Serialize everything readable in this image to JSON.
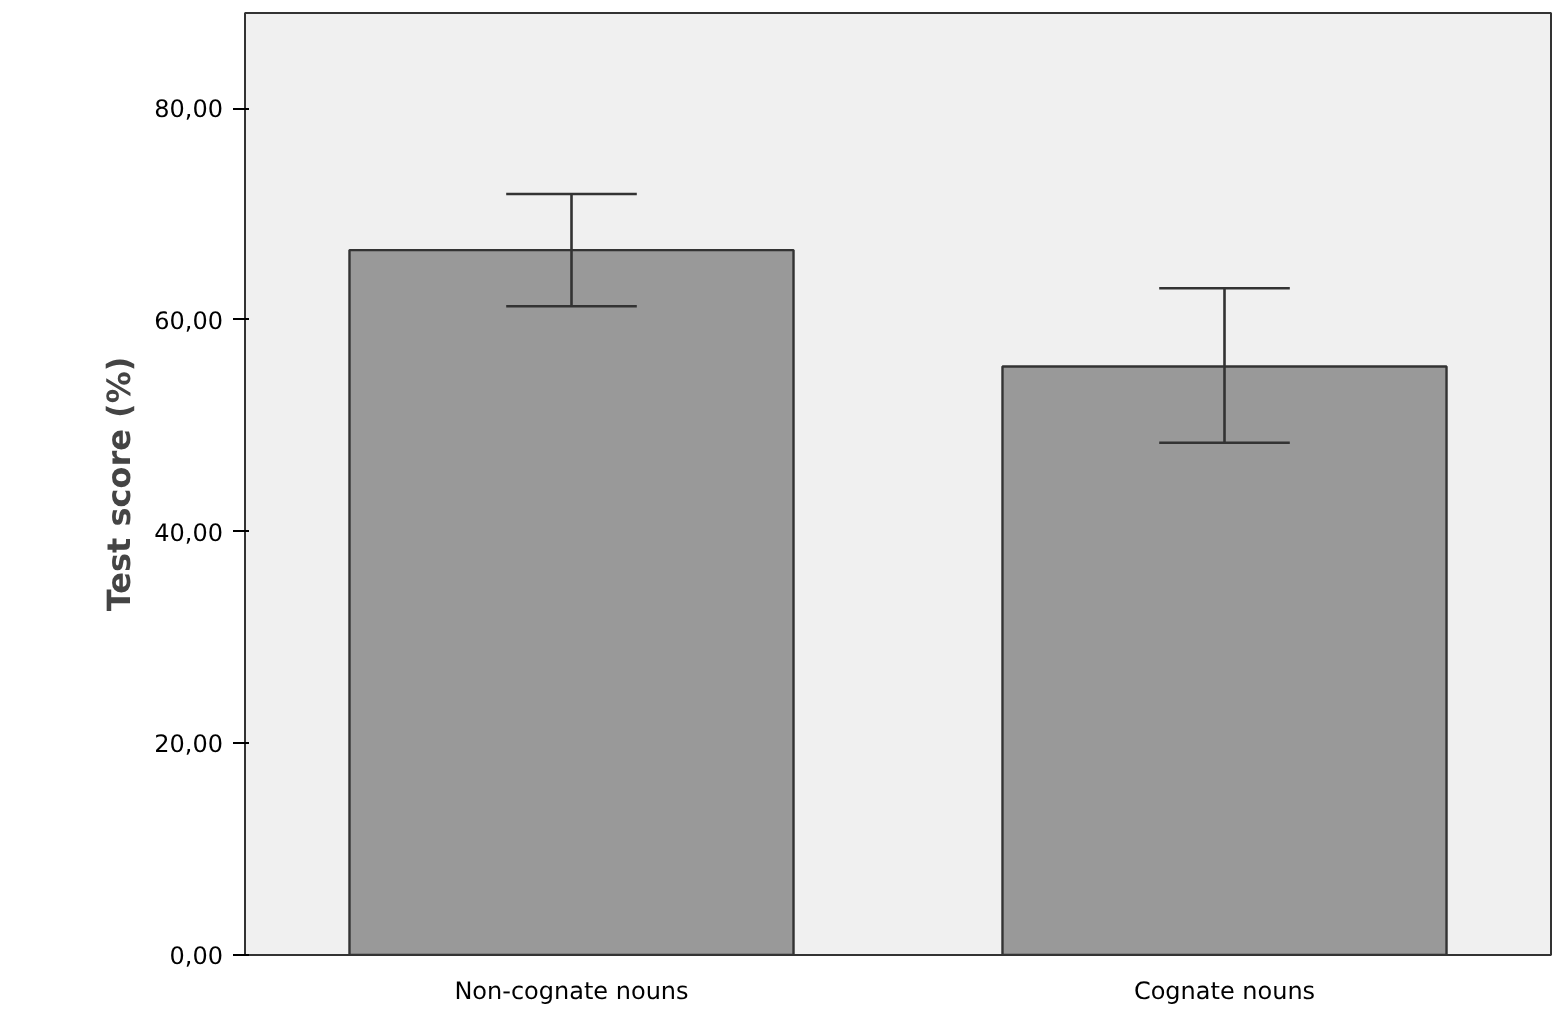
{
  "chart_data": {
    "type": "bar",
    "ylabel": "Test score (%)",
    "categories": [
      "Non-cognate nouns",
      "Cognate nouns"
    ],
    "values": [
      66.6,
      55.6
    ],
    "color": "#999999",
    "errors": [
      [
        61.3,
        71.9
      ],
      [
        48.4,
        63.0
      ]
    ],
    "ylim": [
      0,
      89
    ],
    "yticks": [
      {
        "value": 0,
        "label": "0,00"
      },
      {
        "value": 20,
        "label": "20,00"
      },
      {
        "value": 40,
        "label": "40,00"
      },
      {
        "value": 60,
        "label": "60,00"
      },
      {
        "value": 80,
        "label": "80,00"
      }
    ],
    "grid": false
  }
}
